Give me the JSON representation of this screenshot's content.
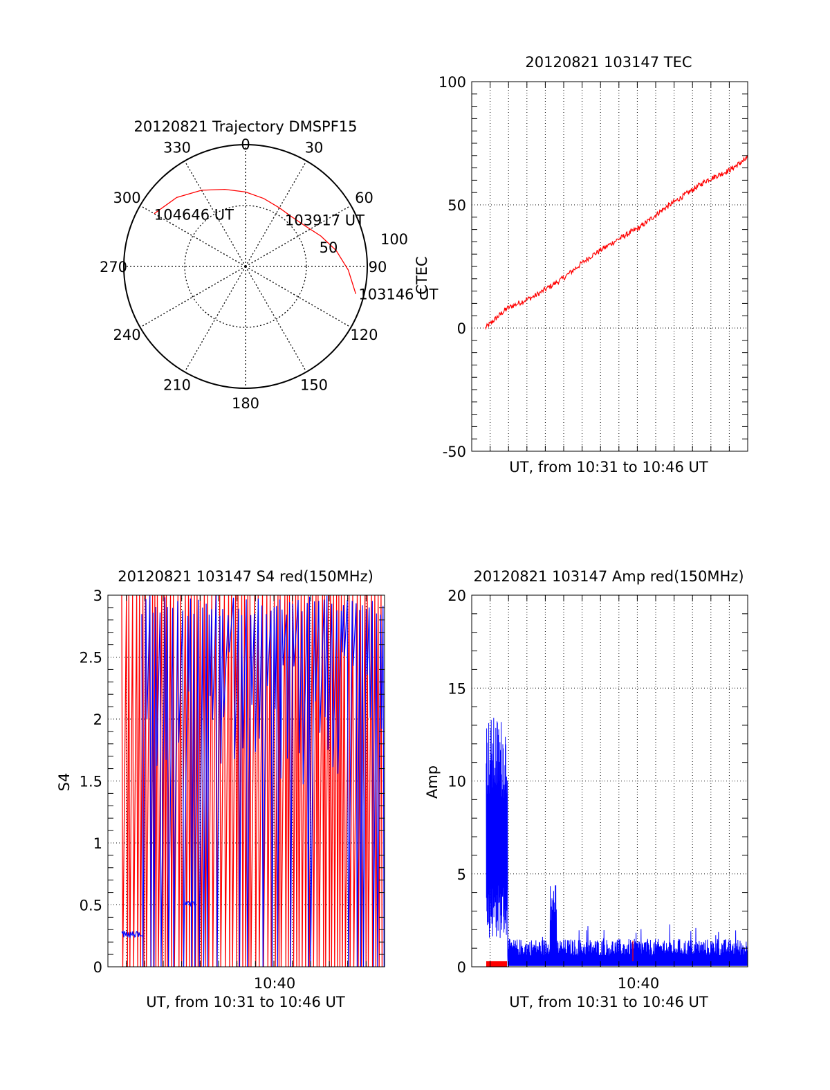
{
  "colors": {
    "red": "#ff0000",
    "blue": "#0000ff",
    "axis": "#000000",
    "grid": "#000000"
  },
  "chart_data": [
    {
      "type": "polar",
      "title": "20120821 Trajectory DMSPF15",
      "angle_labels": [
        "0",
        "30",
        "60",
        "90",
        "120",
        "150",
        "180",
        "210",
        "240",
        "270",
        "300",
        "330"
      ],
      "radial_labels": [
        "50",
        "100"
      ],
      "track": [
        {
          "az": 300,
          "el": 12
        },
        {
          "az": 315,
          "el": 18
        },
        {
          "az": 330,
          "el": 25
        },
        {
          "az": 345,
          "el": 31
        },
        {
          "az": 0,
          "el": 35
        },
        {
          "az": 15,
          "el": 38
        },
        {
          "az": 30,
          "el": 40
        },
        {
          "az": 42,
          "el": 40
        },
        {
          "az": 55,
          "el": 37
        },
        {
          "az": 68,
          "el": 30
        },
        {
          "az": 80,
          "el": 22
        },
        {
          "az": 92,
          "el": 14
        },
        {
          "az": 104,
          "el": 6
        }
      ],
      "annotations": [
        {
          "text": "104646 UT",
          "az": 300,
          "el": 12
        },
        {
          "text": "103917 UT",
          "az": 55,
          "el": 37
        },
        {
          "text": "103146 UT",
          "az": 104,
          "el": 6
        }
      ]
    },
    {
      "type": "line",
      "title": "20120821 103147 TEC",
      "xlabel": "UT, from 10:31 to 10:46 UT",
      "ylabel": "CTEC",
      "xlim": [
        10.5183,
        10.7667
      ],
      "ylim": [
        -50,
        100
      ],
      "yticks": [
        -50,
        0,
        50,
        100
      ],
      "grid": true,
      "series": [
        {
          "name": "TEC",
          "color": "red",
          "x": [
            10.5306,
            10.55,
            10.575,
            10.6,
            10.625,
            10.65,
            10.67,
            10.69,
            10.71,
            10.73,
            10.75,
            10.7667
          ],
          "y": [
            0,
            8,
            13,
            20,
            29,
            36,
            41,
            48,
            54,
            60,
            64,
            69
          ]
        }
      ]
    },
    {
      "type": "line",
      "title": "20120821 103147 S4 red(150MHz)",
      "xlabel": "UT, from 10:31 to 10:46 UT",
      "ylabel": "S4",
      "xlim": [
        10.5183,
        10.7667
      ],
      "ylim": [
        0,
        3
      ],
      "yticks": [
        "0",
        "0.5",
        "1",
        "1.5",
        "2",
        "2.5",
        "3"
      ],
      "xticks": [
        "10:40"
      ],
      "grid": true,
      "series": [
        {
          "name": "S4 red",
          "color": "red"
        },
        {
          "name": "S4 blue",
          "color": "blue"
        }
      ]
    },
    {
      "type": "line",
      "title": "20120821 103147 Amp red(150MHz)",
      "xlabel": "UT, from 10:31 to 10:46 UT",
      "ylabel": "Amp",
      "xlim": [
        10.5183,
        10.7667
      ],
      "ylim": [
        0,
        20
      ],
      "yticks": [
        0,
        5,
        10,
        15,
        20
      ],
      "xticks": [
        "10:40"
      ],
      "grid": true,
      "series": [
        {
          "name": "Amp red",
          "color": "red"
        },
        {
          "name": "Amp blue",
          "color": "blue"
        }
      ]
    }
  ]
}
